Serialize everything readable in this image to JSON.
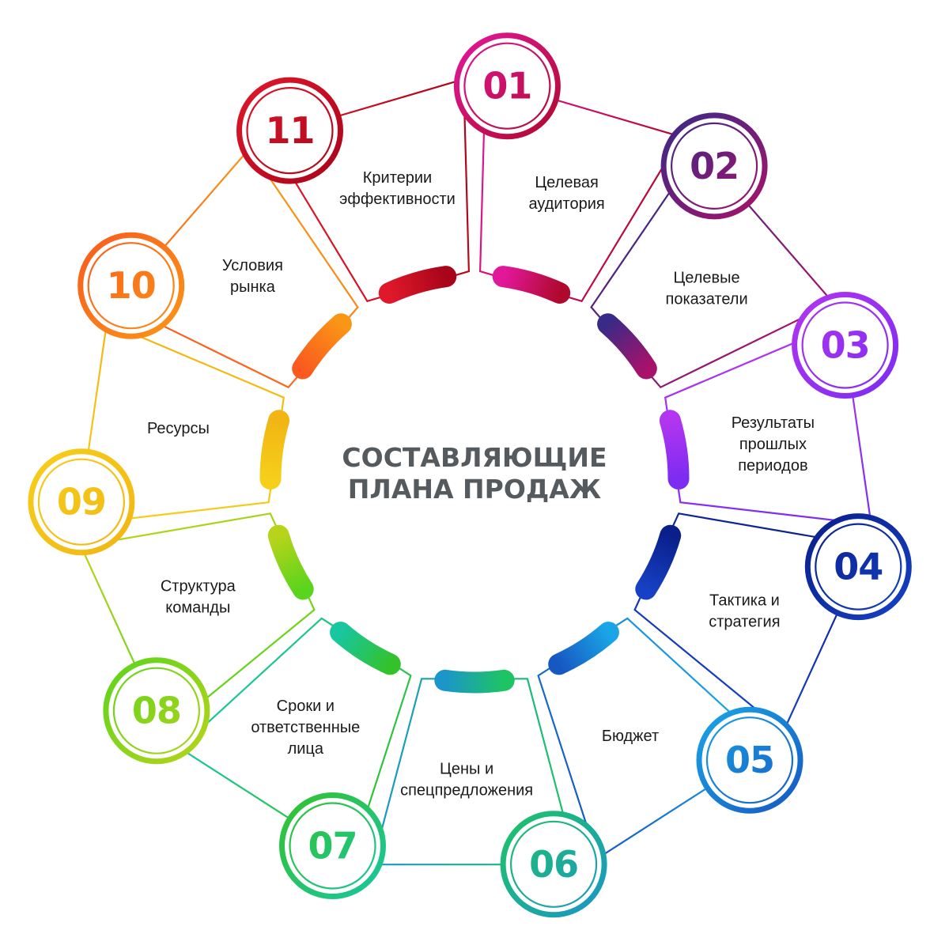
{
  "title": {
    "line1": "СОСТАВЛЯЮЩИЕ",
    "line2": "ПЛАНА ПРОДАЖ",
    "color": "#555a5e"
  },
  "segments": [
    {
      "number": "01",
      "lines": [
        "Целевая",
        "аудитория"
      ],
      "colors": [
        "#e2189b",
        "#b0092e"
      ]
    },
    {
      "number": "02",
      "lines": [
        "Целевые",
        "показатели"
      ],
      "colors": [
        "#3a2a87",
        "#a8126a"
      ]
    },
    {
      "number": "03",
      "lines": [
        "Результаты",
        "прошлых",
        "периодов"
      ],
      "colors": [
        "#b235f0",
        "#7d2cf2"
      ]
    },
    {
      "number": "04",
      "lines": [
        "Тактика и",
        "стратегия"
      ],
      "colors": [
        "#0a1f8a",
        "#1641c4"
      ]
    },
    {
      "number": "05",
      "lines": [
        "Бюджет"
      ],
      "colors": [
        "#1aa6e6",
        "#1658c2"
      ]
    },
    {
      "number": "06",
      "lines": [
        "Цены и",
        "спецпредложения"
      ],
      "colors": [
        "#1ec463",
        "#1a96c8"
      ]
    },
    {
      "number": "07",
      "lines": [
        "Сроки и",
        "ответственные",
        "лица"
      ],
      "colors": [
        "#33c22c",
        "#18c6a0"
      ]
    },
    {
      "number": "08",
      "lines": [
        "Структура",
        "команды"
      ],
      "colors": [
        "#5ad41c",
        "#b8d41a"
      ]
    },
    {
      "number": "09",
      "lines": [
        "Ресурсы"
      ],
      "colors": [
        "#f6cf1a",
        "#f2b514"
      ]
    },
    {
      "number": "10",
      "lines": [
        "Условия",
        "рынка"
      ],
      "colors": [
        "#fa5a1e",
        "#fa9616"
      ]
    },
    {
      "number": "11",
      "lines": [
        "Критерии",
        "эффективности"
      ],
      "colors": [
        "#e0182a",
        "#a8051a"
      ]
    }
  ]
}
